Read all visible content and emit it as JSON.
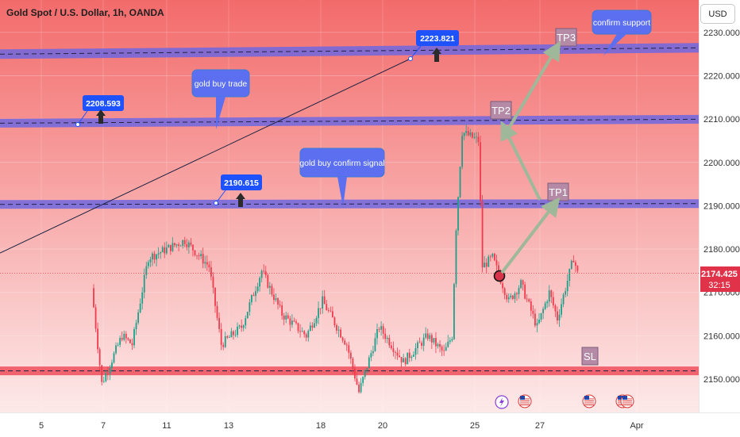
{
  "title": "Gold Spot / U.S. Dollar, 1h, OANDA",
  "currency": "USD",
  "colors": {
    "background_top": "#f36b6b",
    "background_bottom": "#fde9e9",
    "band": "#6f67e0",
    "band_red": "#ef4d5a",
    "up": "#1f9e89",
    "down": "#ef3b4c",
    "callout": "#5b6ff0",
    "label_box": "#1e52ff",
    "arrow": "#9fb89a"
  },
  "price_badge": {
    "price": "2174.425",
    "countdown": "32:15"
  },
  "chart_data": {
    "type": "candlestick",
    "ylim": [
      2145,
      2232
    ],
    "yticks": [
      2150,
      2160,
      2170,
      2180,
      2190,
      2200,
      2210,
      2220,
      2230
    ],
    "ytick_labels": [
      "2150.000",
      "2160.000",
      "2170.000",
      "2180.000",
      "2190.000",
      "2200.000",
      "2210.000",
      "2220.000",
      "2230.000"
    ],
    "xticks": [
      "5",
      "7",
      "11",
      "13",
      "18",
      "20",
      "25",
      "27",
      "Apr"
    ],
    "current_price": 2174.425,
    "horizontal_levels": [
      {
        "name": "support_top",
        "price": 2225.7
      },
      {
        "name": "level_2209",
        "price": 2209.5
      },
      {
        "name": "level_2190",
        "price": 2190.4
      },
      {
        "name": "sl_level",
        "price": 2151.9
      }
    ],
    "price_labels": [
      {
        "text": "2223.821",
        "value": 2223.821
      },
      {
        "text": "2208.593",
        "value": 2208.593
      },
      {
        "text": "2190.615",
        "value": 2190.615
      }
    ],
    "annotations": [
      {
        "text": "gold buy trade"
      },
      {
        "text": "gold buy confirm signal"
      },
      {
        "text": "confirm support"
      },
      {
        "text": "TP1",
        "value": 2191
      },
      {
        "text": "TP2",
        "value": 2211
      },
      {
        "text": "TP3",
        "value": 2227
      },
      {
        "text": "SL",
        "value": 2153
      }
    ],
    "segments": [
      {
        "from": 2171,
        "to": 2149,
        "candles": 5
      },
      {
        "from": 2149,
        "to": 2160,
        "candles": 10
      },
      {
        "from": 2160,
        "to": 2158,
        "candles": 5
      },
      {
        "from": 2158,
        "to": 2178,
        "candles": 8
      },
      {
        "from": 2178,
        "to": 2182,
        "candles": 18
      },
      {
        "from": 2182,
        "to": 2176,
        "candles": 12
      },
      {
        "from": 2176,
        "to": 2158,
        "candles": 6
      },
      {
        "from": 2158,
        "to": 2162,
        "candles": 10
      },
      {
        "from": 2162,
        "to": 2175,
        "candles": 10
      },
      {
        "from": 2175,
        "to": 2165,
        "candles": 10
      },
      {
        "from": 2165,
        "to": 2160,
        "candles": 12
      },
      {
        "from": 2160,
        "to": 2168,
        "candles": 8
      },
      {
        "from": 2168,
        "to": 2158,
        "candles": 12
      },
      {
        "from": 2158,
        "to": 2147,
        "candles": 6
      },
      {
        "from": 2147,
        "to": 2162,
        "candles": 10
      },
      {
        "from": 2162,
        "to": 2154,
        "candles": 12
      },
      {
        "from": 2154,
        "to": 2160,
        "candles": 12
      },
      {
        "from": 2160,
        "to": 2156,
        "candles": 8
      },
      {
        "from": 2156,
        "to": 2160,
        "candles": 4
      },
      {
        "from": 2160,
        "to": 2185,
        "candles": 2
      },
      {
        "from": 2185,
        "to": 2207,
        "candles": 3
      },
      {
        "from": 2207,
        "to": 2205,
        "candles": 8
      },
      {
        "from": 2205,
        "to": 2176,
        "candles": 2
      },
      {
        "from": 2176,
        "to": 2178,
        "candles": 5
      },
      {
        "from": 2178,
        "to": 2168,
        "candles": 8
      },
      {
        "from": 2168,
        "to": 2172,
        "candles": 6
      },
      {
        "from": 2172,
        "to": 2162,
        "candles": 8
      },
      {
        "from": 2162,
        "to": 2170,
        "candles": 6
      },
      {
        "from": 2170,
        "to": 2164,
        "candles": 4
      },
      {
        "from": 2164,
        "to": 2178,
        "candles": 8
      },
      {
        "from": 2178,
        "to": 2174.4,
        "candles": 2
      }
    ]
  }
}
